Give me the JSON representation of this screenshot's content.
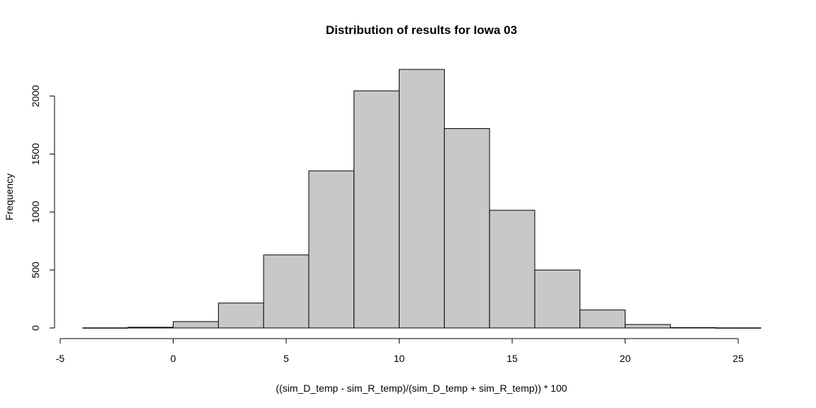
{
  "chart_data": {
    "type": "bar",
    "title": "Distribution of results for Iowa 03",
    "xlabel": "((sim_D_temp - sim_R_temp)/(sim_D_temp + sim_R_temp)) * 100",
    "ylabel": "Frequency",
    "bin_edges": [
      -4,
      -2,
      0,
      2,
      4,
      6,
      8,
      10,
      12,
      14,
      16,
      18,
      20,
      22,
      24,
      26
    ],
    "values": [
      1,
      6,
      55,
      215,
      630,
      1355,
      2045,
      2230,
      1720,
      1015,
      500,
      155,
      30,
      3,
      1
    ],
    "xlim": [
      -5,
      26
    ],
    "ylim": [
      0,
      2250
    ],
    "x_ticks": [
      -5,
      0,
      5,
      10,
      15,
      20,
      25
    ],
    "x_tick_labels": [
      "-5",
      "0",
      "5",
      "10",
      "15",
      "20",
      "25"
    ],
    "y_ticks": [
      0,
      500,
      1000,
      1500,
      2000
    ],
    "y_tick_labels": [
      "0",
      "500",
      "1000",
      "1500",
      "2000"
    ],
    "bar_color": "#c8c8c8",
    "grid": false,
    "legend": "none"
  }
}
